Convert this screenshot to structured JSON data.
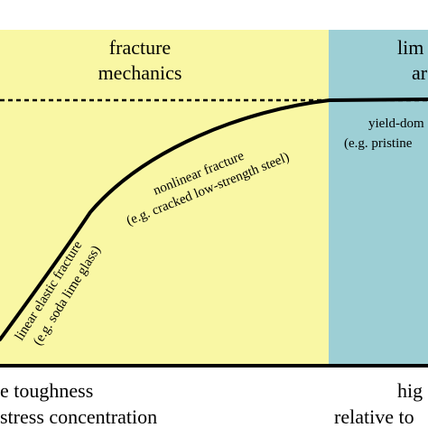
{
  "regions": {
    "left": {
      "title_line1": "fracture",
      "title_line2": "mechanics",
      "fill": "#f9f7a4"
    },
    "right": {
      "title_line1": "lim",
      "title_line2": "ar",
      "fill": "#9dcfd5"
    }
  },
  "curve_annotations": {
    "linear": {
      "line1": "linear elastic fracture",
      "line2": "(e.g. soda lime glass)"
    },
    "nonlinear": {
      "line1": "nonlinear fracture",
      "line2": "(e.g. cracked low-strength steel)"
    },
    "yield": {
      "line1": "yield-dom",
      "line2": "(e.g. pristine"
    }
  },
  "x_axis": {
    "left_label_line1": "e toughness",
    "left_label_line2": "stress concentration",
    "right_label_line1": "hig",
    "right_label_line2": "relative to"
  },
  "colors": {
    "curve": "#000000",
    "axis": "#000000",
    "dashed_limit": "#000000",
    "text": "#000000"
  }
}
